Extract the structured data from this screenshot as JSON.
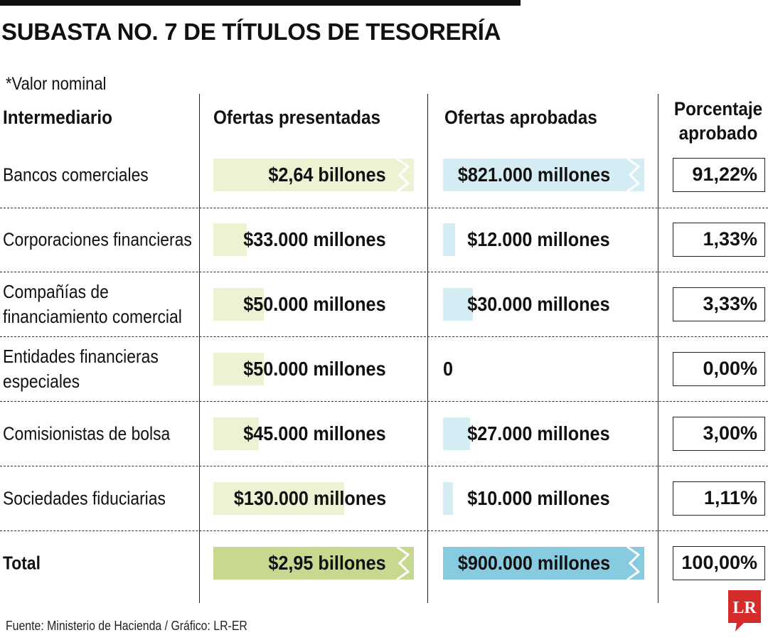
{
  "title": "SUBASTA NO. 7 DE TÍTULOS DE TESORERÍA",
  "note": "*Valor nominal",
  "headers": {
    "intermediario": "Intermediario",
    "presentadas": "Ofertas presentadas",
    "aprobadas": "Ofertas aprobadas",
    "porcentaje_line1": "Porcentaje",
    "porcentaje_line2": "aprobado"
  },
  "chart_data": {
    "type": "table",
    "units": "COP (valor nominal)",
    "rows": [
      {
        "intermediario": "Bancos comerciales",
        "presentadas_label": "$2,64 billones",
        "presentadas_value": 2640000,
        "aprobadas_label": "$821.000 millones",
        "aprobadas_value": 821000,
        "porcentaje": "91,22%",
        "broken": true
      },
      {
        "intermediario": "Corporaciones financieras",
        "presentadas_label": "$33.000 millones",
        "presentadas_value": 33000,
        "aprobadas_label": "$12.000 millones",
        "aprobadas_value": 12000,
        "porcentaje": "1,33%",
        "broken": false
      },
      {
        "intermediario": "Compañías de financiamiento comercial",
        "presentadas_label": "$50.000 millones",
        "presentadas_value": 50000,
        "aprobadas_label": "$30.000 millones",
        "aprobadas_value": 30000,
        "porcentaje": "3,33%",
        "broken": false
      },
      {
        "intermediario": "Entidades financieras especiales",
        "presentadas_label": "$50.000 millones",
        "presentadas_value": 50000,
        "aprobadas_label": "0",
        "aprobadas_value": 0,
        "porcentaje": "0,00%",
        "broken": false
      },
      {
        "intermediario": "Comisionistas de bolsa",
        "presentadas_label": "$45.000 millones",
        "presentadas_value": 45000,
        "aprobadas_label": "$27.000 millones",
        "aprobadas_value": 27000,
        "porcentaje": "3,00%",
        "broken": false
      },
      {
        "intermediario": "Sociedades fiduciarias",
        "presentadas_label": "$130.000 millones",
        "presentadas_value": 130000,
        "aprobadas_label": "$10.000 millones",
        "aprobadas_value": 10000,
        "porcentaje": "1,11%",
        "broken": false
      }
    ],
    "total": {
      "intermediario": "Total",
      "presentadas_label": "$2,95 billones",
      "presentadas_value": 2950000,
      "aprobadas_label": "$900.000 millones",
      "aprobadas_value": 900000,
      "porcentaje": "100,00%",
      "broken": true
    }
  },
  "colors": {
    "presentadas_light": "#eef2d3",
    "presentadas_dark": "#c7d98f",
    "aprobadas_light": "#d4ecf3",
    "aprobadas_dark": "#86cbe0",
    "logo": "#d62b2b"
  },
  "source": "Fuente: Ministerio de Hacienda / Gráfico: LR-ER",
  "logo_text": "LR"
}
